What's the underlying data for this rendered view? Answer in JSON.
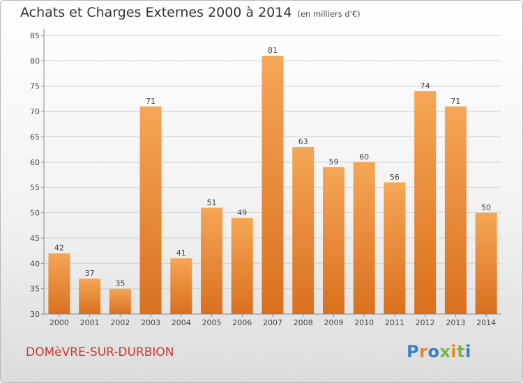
{
  "header": {
    "title": "Achats et Charges Externes 2000 à 2014",
    "unit": "(en milliers d'€)"
  },
  "footer": {
    "commune": "DOMèVRE-SUR-DURBION",
    "logo": "Proxiti"
  },
  "colors": {
    "bar_top": "#f5a656",
    "bar_bottom": "#d9701f",
    "grid": "#cfcfcf",
    "axis": "#888888",
    "commune_text": "#cc3a2e",
    "logo_letters": [
      "#3f7fc1",
      "#e08b2a",
      "#3f7fc1",
      "#7ab648",
      "#e08b2a",
      "#7ab648",
      "#3f7fc1"
    ]
  },
  "chart_data": {
    "type": "bar",
    "title": "Achats et Charges Externes 2000 à 2014",
    "subtitle": "(en milliers d'€)",
    "categories": [
      "2000",
      "2001",
      "2002",
      "2003",
      "2004",
      "2005",
      "2006",
      "2007",
      "2008",
      "2009",
      "2010",
      "2011",
      "2012",
      "2013",
      "2014"
    ],
    "values": [
      42,
      37,
      35,
      71,
      41,
      51,
      49,
      81,
      63,
      59,
      60,
      56,
      74,
      71,
      50
    ],
    "ylim": [
      30,
      85
    ],
    "yticks": [
      30,
      35,
      40,
      45,
      50,
      55,
      60,
      65,
      70,
      75,
      80,
      85
    ],
    "grid": true,
    "data_labels": true,
    "xlabel": "",
    "ylabel": ""
  }
}
